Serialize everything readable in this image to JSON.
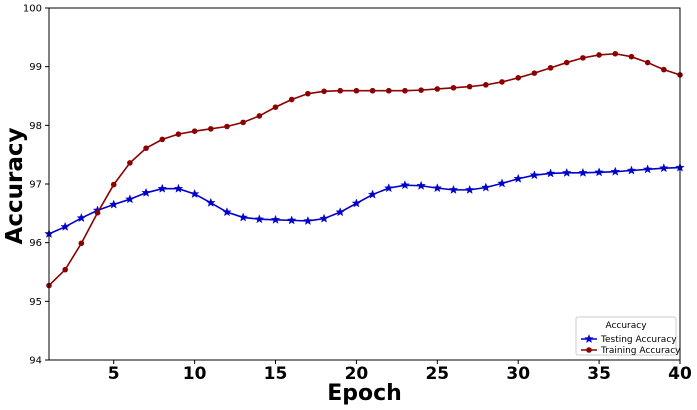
{
  "chart_data": {
    "type": "line",
    "xlabel": "Epoch",
    "ylabel": "Accuracy",
    "xlim": [
      1,
      40
    ],
    "ylim": [
      94,
      100
    ],
    "xticks": [
      5,
      10,
      15,
      20,
      25,
      30,
      35,
      40
    ],
    "yticks": [
      94,
      95,
      96,
      97,
      98,
      99,
      100
    ],
    "grid": false,
    "legend": {
      "title": "Accuracy",
      "position": "bottom-right"
    },
    "x": [
      1,
      2,
      3,
      4,
      5,
      6,
      7,
      8,
      9,
      10,
      11,
      12,
      13,
      14,
      15,
      16,
      17,
      18,
      19,
      20,
      21,
      22,
      23,
      24,
      25,
      26,
      27,
      28,
      29,
      30,
      31,
      32,
      33,
      34,
      35,
      36,
      37,
      38,
      39,
      40
    ],
    "series": [
      {
        "name": "Testing Accuracy",
        "color": "#0000cc",
        "marker": "star",
        "values": [
          96.15,
          96.27,
          96.42,
          96.55,
          96.65,
          96.74,
          96.85,
          96.92,
          96.92,
          96.83,
          96.68,
          96.52,
          96.43,
          96.4,
          96.39,
          96.38,
          96.37,
          96.41,
          96.52,
          96.67,
          96.82,
          96.93,
          96.98,
          96.97,
          96.93,
          96.9,
          96.9,
          96.94,
          97.01,
          97.09,
          97.15,
          97.18,
          97.19,
          97.19,
          97.2,
          97.21,
          97.23,
          97.25,
          97.27,
          97.28
        ]
      },
      {
        "name": "Training Accuracy",
        "color": "#8b0000",
        "marker": "circle",
        "values": [
          95.27,
          95.54,
          95.99,
          96.51,
          96.99,
          97.36,
          97.61,
          97.76,
          97.85,
          97.9,
          97.94,
          97.98,
          98.05,
          98.16,
          98.31,
          98.44,
          98.54,
          98.58,
          98.59,
          98.59,
          98.59,
          98.59,
          98.59,
          98.6,
          98.62,
          98.64,
          98.66,
          98.69,
          98.74,
          98.81,
          98.89,
          98.98,
          99.07,
          99.15,
          99.2,
          99.22,
          99.17,
          99.07,
          98.95,
          98.86
        ]
      }
    ]
  }
}
